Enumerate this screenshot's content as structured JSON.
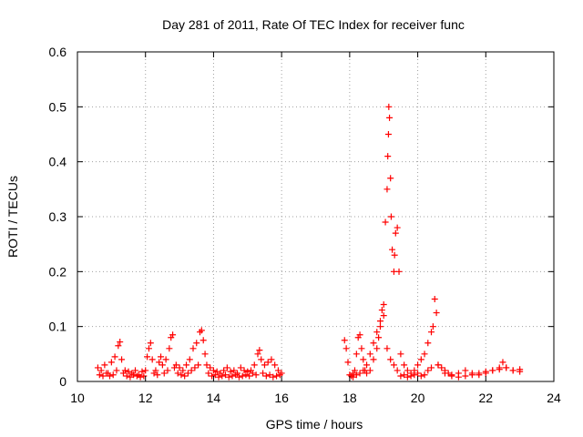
{
  "chart_data": {
    "type": "scatter",
    "title": "Day 281 of 2011, Rate Of TEC Index for receiver func",
    "xlabel": "GPS time / hours",
    "ylabel": "ROTI / TECUs",
    "xlim": [
      10,
      24
    ],
    "ylim": [
      0,
      0.6
    ],
    "xticks": [
      "10",
      "12",
      "14",
      "16",
      "18",
      "20",
      "22",
      "24"
    ],
    "yticks": [
      "0",
      "0.1",
      "0.2",
      "0.3",
      "0.4",
      "0.5",
      "0.6"
    ],
    "grid": true,
    "marker": "plus",
    "color": "#ff0000",
    "series": [
      {
        "x": [
          10.6,
          10.7,
          10.8,
          10.9,
          11.0,
          11.1,
          11.2,
          11.25,
          11.3,
          11.4,
          11.5,
          11.6,
          11.7,
          11.8,
          11.9,
          12.0,
          12.05,
          12.1,
          12.15,
          12.2,
          12.3,
          12.4,
          12.45,
          12.5,
          12.6,
          12.7,
          12.75,
          12.8,
          12.9,
          13.0,
          13.1,
          13.2,
          13.3,
          13.4,
          13.5,
          13.6,
          13.65,
          13.7,
          13.75,
          13.8,
          13.9,
          14.0,
          14.1,
          14.2,
          14.3,
          14.4,
          14.5,
          14.6,
          14.7,
          14.8,
          14.9,
          15.0,
          15.1,
          15.2,
          15.3,
          15.35,
          15.4,
          15.5,
          15.6,
          15.7,
          15.8,
          15.9,
          16.0
        ],
        "y": [
          0.025,
          0.02,
          0.03,
          0.015,
          0.035,
          0.045,
          0.065,
          0.072,
          0.04,
          0.02,
          0.018,
          0.015,
          0.02,
          0.012,
          0.018,
          0.02,
          0.045,
          0.06,
          0.07,
          0.04,
          0.02,
          0.035,
          0.045,
          0.03,
          0.04,
          0.06,
          0.08,
          0.085,
          0.03,
          0.025,
          0.02,
          0.03,
          0.04,
          0.06,
          0.07,
          0.09,
          0.093,
          0.075,
          0.05,
          0.03,
          0.025,
          0.02,
          0.018,
          0.015,
          0.02,
          0.025,
          0.018,
          0.02,
          0.015,
          0.025,
          0.02,
          0.018,
          0.02,
          0.03,
          0.05,
          0.057,
          0.04,
          0.03,
          0.035,
          0.04,
          0.03,
          0.02,
          0.015
        ]
      },
      {
        "x": [
          10.65,
          10.75,
          10.85,
          10.95,
          11.05,
          11.15,
          11.35,
          11.45,
          11.55,
          11.65,
          11.75,
          11.85,
          11.95,
          12.25,
          12.35,
          12.55,
          12.65,
          12.85,
          12.95,
          13.05,
          13.15,
          13.25,
          13.35,
          13.45,
          13.55,
          13.85,
          13.95,
          14.05,
          14.15,
          14.25,
          14.35,
          14.45,
          14.55,
          14.65,
          14.75,
          14.85,
          14.95,
          15.05,
          15.15,
          15.25,
          15.45,
          15.55,
          15.65,
          15.75,
          15.85,
          15.95
        ],
        "y": [
          0.012,
          0.01,
          0.015,
          0.01,
          0.012,
          0.02,
          0.015,
          0.01,
          0.008,
          0.012,
          0.01,
          0.008,
          0.01,
          0.015,
          0.012,
          0.015,
          0.02,
          0.025,
          0.015,
          0.012,
          0.01,
          0.015,
          0.02,
          0.025,
          0.03,
          0.015,
          0.01,
          0.012,
          0.008,
          0.01,
          0.012,
          0.008,
          0.01,
          0.012,
          0.008,
          0.01,
          0.012,
          0.01,
          0.015,
          0.012,
          0.015,
          0.01,
          0.012,
          0.008,
          0.01,
          0.012
        ]
      },
      {
        "x": [
          17.85,
          17.9,
          17.95,
          18.0,
          18.05,
          18.1,
          18.15,
          18.2,
          18.25,
          18.3,
          18.35,
          18.4,
          18.45,
          18.5,
          18.6,
          18.7,
          18.8,
          18.85,
          18.9,
          18.95,
          19.0,
          19.05,
          19.1,
          19.12,
          19.14,
          19.15,
          19.17,
          19.2,
          19.22,
          19.25,
          19.3,
          19.32,
          19.35,
          19.4,
          19.45,
          19.5,
          19.6,
          19.7,
          19.8,
          19.9,
          20.0,
          20.1,
          20.2,
          20.3,
          20.4,
          20.45,
          20.5,
          20.55,
          20.6,
          20.7,
          20.8,
          20.9,
          21.0,
          21.2,
          21.4,
          21.6,
          21.8,
          22.0,
          22.2,
          22.4,
          22.5,
          22.6,
          22.8,
          23.0
        ],
        "y": [
          0.075,
          0.06,
          0.035,
          0.012,
          0.01,
          0.015,
          0.02,
          0.05,
          0.08,
          0.085,
          0.06,
          0.04,
          0.02,
          0.015,
          0.02,
          0.04,
          0.06,
          0.08,
          0.1,
          0.13,
          0.14,
          0.29,
          0.35,
          0.41,
          0.45,
          0.5,
          0.48,
          0.37,
          0.3,
          0.24,
          0.2,
          0.23,
          0.27,
          0.28,
          0.2,
          0.05,
          0.03,
          0.02,
          0.015,
          0.02,
          0.03,
          0.04,
          0.05,
          0.07,
          0.09,
          0.1,
          0.15,
          0.125,
          0.03,
          0.025,
          0.02,
          0.015,
          0.012,
          0.015,
          0.02,
          0.015,
          0.012,
          0.015,
          0.02,
          0.025,
          0.035,
          0.025,
          0.02,
          0.022
        ]
      },
      {
        "x": [
          18.1,
          18.2,
          18.3,
          18.4,
          18.5,
          18.6,
          18.7,
          18.8,
          18.9,
          19.0,
          19.1,
          19.2,
          19.3,
          19.4,
          19.5,
          19.6,
          19.7,
          19.8,
          19.9,
          20.0,
          20.1,
          20.2,
          20.3,
          20.4,
          20.6,
          20.8,
          21.0,
          21.2,
          21.4,
          21.6,
          21.8,
          22.0,
          22.2,
          22.4,
          22.6,
          22.8,
          23.0
        ],
        "y": [
          0.008,
          0.012,
          0.015,
          0.02,
          0.03,
          0.05,
          0.07,
          0.09,
          0.11,
          0.12,
          0.06,
          0.04,
          0.03,
          0.02,
          0.01,
          0.012,
          0.008,
          0.01,
          0.012,
          0.015,
          0.01,
          0.012,
          0.02,
          0.025,
          0.03,
          0.015,
          0.01,
          0.008,
          0.01,
          0.012,
          0.015,
          0.018,
          0.02,
          0.022,
          0.025,
          0.02,
          0.018
        ]
      }
    ]
  }
}
